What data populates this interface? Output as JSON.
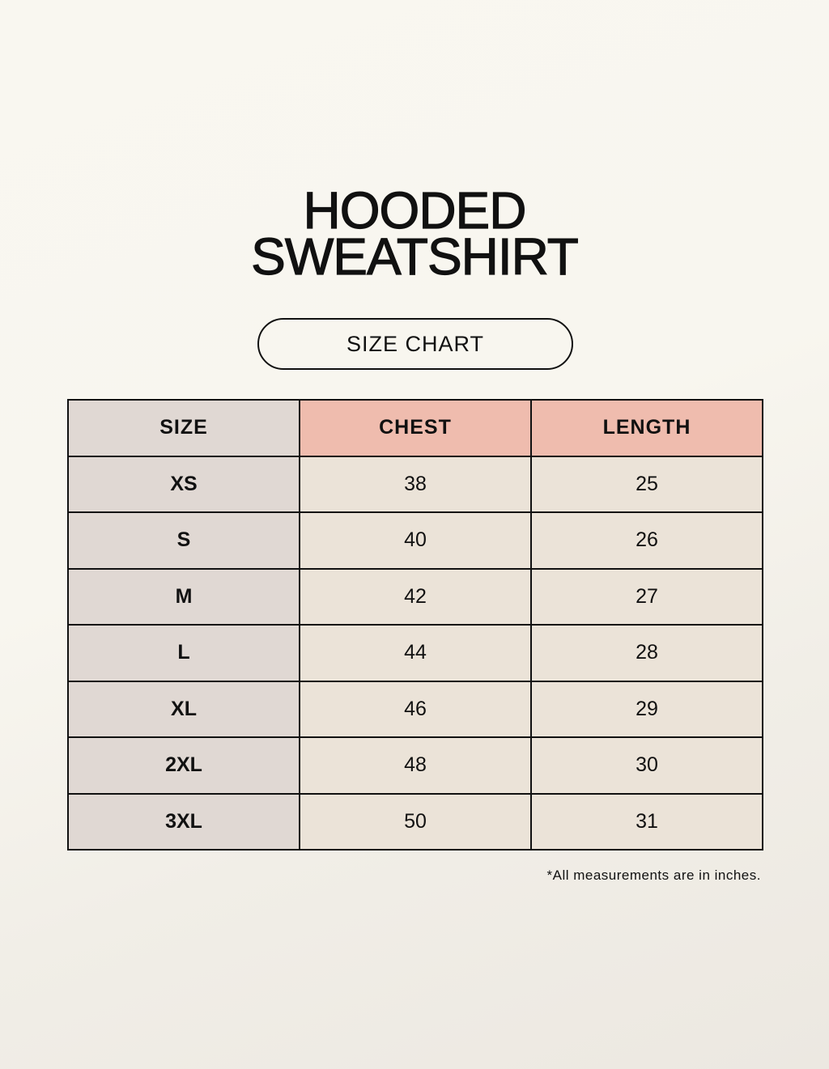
{
  "title_line1": "HOODED",
  "title_line2": "SWEATSHIRT",
  "subtitle": "SIZE CHART",
  "table": {
    "headers": [
      "SIZE",
      "CHEST",
      "LENGTH"
    ],
    "rows": [
      [
        "XS",
        "38",
        "25"
      ],
      [
        "S",
        "40",
        "26"
      ],
      [
        "M",
        "42",
        "27"
      ],
      [
        "L",
        "44",
        "28"
      ],
      [
        "XL",
        "46",
        "29"
      ],
      [
        "2XL",
        "48",
        "30"
      ],
      [
        "3XL",
        "50",
        "31"
      ]
    ]
  },
  "footnote": "*All measurements are in inches.",
  "colors": {
    "size_column": "#e0d8d3",
    "header_accent": "#efbcae",
    "cell": "#ebe3d8",
    "background": "#f8f6ef"
  }
}
